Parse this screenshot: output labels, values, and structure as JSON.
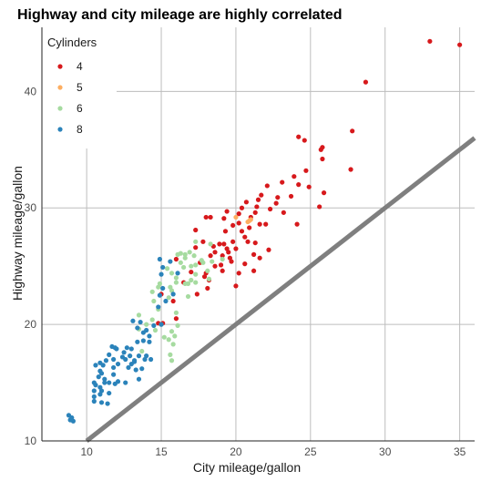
{
  "chart_data": {
    "type": "scatter",
    "title": "Highway and city mileage are highly correlated",
    "xlabel": "City mileage/gallon",
    "ylabel": "Highway mileage/gallon",
    "xlim": [
      7,
      36
    ],
    "ylim": [
      10,
      45.5
    ],
    "xticks": [
      10,
      15,
      20,
      25,
      30,
      35
    ],
    "yticks": [
      10,
      20,
      30,
      40
    ],
    "grid": true,
    "legend": {
      "title": "Cylinders",
      "placement": "top-left"
    },
    "reference_line": {
      "slope": 1,
      "intercept": 0,
      "color": "#7f7f7f"
    },
    "series": [
      {
        "name": "4",
        "color": "#d7191c",
        "points": [
          [
            33.0,
            44.3
          ],
          [
            35.0,
            44.0
          ],
          [
            28.7,
            40.8
          ],
          [
            27.8,
            36.6
          ],
          [
            24.2,
            36.1
          ],
          [
            24.6,
            35.8
          ],
          [
            25.8,
            35.2
          ],
          [
            25.7,
            35.0
          ],
          [
            25.8,
            34.2
          ],
          [
            27.7,
            33.3
          ],
          [
            24.7,
            33.2
          ],
          [
            23.9,
            32.7
          ],
          [
            23.1,
            32.2
          ],
          [
            24.2,
            32.0
          ],
          [
            22.1,
            31.9
          ],
          [
            24.9,
            31.8
          ],
          [
            25.9,
            31.3
          ],
          [
            21.7,
            31.1
          ],
          [
            23.7,
            31.0
          ],
          [
            22.8,
            30.9
          ],
          [
            21.5,
            30.7
          ],
          [
            20.7,
            30.5
          ],
          [
            22.7,
            30.4
          ],
          [
            21.4,
            30.1
          ],
          [
            20.4,
            30.0
          ],
          [
            22.3,
            29.9
          ],
          [
            25.6,
            30.1
          ],
          [
            19.4,
            29.7
          ],
          [
            23.2,
            29.6
          ],
          [
            20.2,
            29.5
          ],
          [
            21.0,
            29.2
          ],
          [
            21.3,
            29.6
          ],
          [
            19.2,
            29.1
          ],
          [
            18.0,
            29.2
          ],
          [
            18.3,
            29.2
          ],
          [
            20.2,
            28.7
          ],
          [
            22.0,
            28.6
          ],
          [
            19.8,
            28.5
          ],
          [
            21.6,
            28.6
          ],
          [
            20.9,
            28.3
          ],
          [
            24.1,
            28.6
          ],
          [
            17.3,
            28.1
          ],
          [
            20.4,
            28.0
          ],
          [
            19.3,
            28.0
          ],
          [
            20.6,
            27.5
          ],
          [
            19.8,
            27.1
          ],
          [
            17.8,
            27.1
          ],
          [
            20.8,
            27.1
          ],
          [
            21.3,
            27.0
          ],
          [
            19.2,
            26.9
          ],
          [
            18.9,
            26.9
          ],
          [
            18.5,
            26.7
          ],
          [
            17.3,
            26.6
          ],
          [
            19.4,
            26.5
          ],
          [
            20.0,
            26.5
          ],
          [
            18.6,
            26.2
          ],
          [
            22.2,
            26.4
          ],
          [
            19.5,
            26.2
          ],
          [
            21.2,
            26.0
          ],
          [
            19.1,
            25.9
          ],
          [
            18.3,
            25.9
          ],
          [
            19.6,
            25.7
          ],
          [
            19.7,
            25.4
          ],
          [
            17.6,
            25.3
          ],
          [
            19.0,
            25.1
          ],
          [
            18.6,
            25.0
          ],
          [
            21.6,
            25.7
          ],
          [
            20.6,
            25.2
          ],
          [
            21.2,
            24.6
          ],
          [
            20.2,
            24.4
          ],
          [
            18.0,
            24.4
          ],
          [
            19.1,
            24.6
          ],
          [
            17.0,
            24.5
          ],
          [
            16.0,
            25.6
          ],
          [
            17.9,
            24.1
          ],
          [
            18.2,
            23.8
          ],
          [
            20.0,
            23.3
          ],
          [
            16.5,
            23.6
          ],
          [
            18.1,
            23.1
          ],
          [
            17.4,
            22.6
          ],
          [
            15.0,
            22.6
          ],
          [
            15.8,
            22.0
          ],
          [
            16.0,
            20.5
          ],
          [
            15.1,
            20.1
          ],
          [
            14.8,
            20.1
          ]
        ]
      },
      {
        "name": "5",
        "color": "#fdae61",
        "points": [
          [
            20.0,
            29.2
          ],
          [
            21.0,
            29.0
          ],
          [
            20.9,
            28.9
          ],
          [
            20.8,
            28.8
          ]
        ]
      },
      {
        "name": "6",
        "color": "#a6dba0",
        "points": [
          [
            17.3,
            27.1
          ],
          [
            18.3,
            26.9
          ],
          [
            16.9,
            26.2
          ],
          [
            16.3,
            26.1
          ],
          [
            16.1,
            26.0
          ],
          [
            16.6,
            26.0
          ],
          [
            17.2,
            25.9
          ],
          [
            16.6,
            25.7
          ],
          [
            17.7,
            25.5
          ],
          [
            19.1,
            25.6
          ],
          [
            18.4,
            25.4
          ],
          [
            17.8,
            25.3
          ],
          [
            16.3,
            25.3
          ],
          [
            17.3,
            25.1
          ],
          [
            17.0,
            25.0
          ],
          [
            16.5,
            24.9
          ],
          [
            15.4,
            24.8
          ],
          [
            18.1,
            24.6
          ],
          [
            17.3,
            24.3
          ],
          [
            15.7,
            24.4
          ],
          [
            16.0,
            24.0
          ],
          [
            18.2,
            23.9
          ],
          [
            16.0,
            23.6
          ],
          [
            14.9,
            23.5
          ],
          [
            15.6,
            23.2
          ],
          [
            17.3,
            23.6
          ],
          [
            17.0,
            23.8
          ],
          [
            16.8,
            23.5
          ],
          [
            14.4,
            22.8
          ],
          [
            15.7,
            22.9
          ],
          [
            14.8,
            23.2
          ],
          [
            16.6,
            23.5
          ],
          [
            14.5,
            22.0
          ],
          [
            15.5,
            22.3
          ],
          [
            14.8,
            21.3
          ],
          [
            16.0,
            21.0
          ],
          [
            13.5,
            20.8
          ],
          [
            14.4,
            20.4
          ],
          [
            15.0,
            20.0
          ],
          [
            16.1,
            19.9
          ],
          [
            13.5,
            19.6
          ],
          [
            15.7,
            19.4
          ],
          [
            15.9,
            19.0
          ],
          [
            15.5,
            18.7
          ],
          [
            15.8,
            18.3
          ],
          [
            13.7,
            17.7
          ],
          [
            15.6,
            17.4
          ],
          [
            15.7,
            16.9
          ],
          [
            15.2,
            18.9
          ],
          [
            14.6,
            19.5
          ],
          [
            14.0,
            20.0
          ],
          [
            16.8,
            22.4
          ]
        ]
      },
      {
        "name": "8",
        "color": "#2b83ba",
        "points": [
          [
            8.8,
            12.2
          ],
          [
            9.0,
            12.0
          ],
          [
            8.9,
            11.8
          ],
          [
            9.1,
            11.7
          ],
          [
            10.5,
            15.0
          ],
          [
            10.6,
            14.8
          ],
          [
            10.5,
            14.3
          ],
          [
            10.8,
            15.5
          ],
          [
            10.9,
            14.6
          ],
          [
            11.0,
            14.3
          ],
          [
            11.2,
            15.0
          ],
          [
            11.5,
            15.0
          ],
          [
            11.2,
            15.3
          ],
          [
            10.5,
            13.8
          ],
          [
            10.5,
            13.4
          ],
          [
            11.0,
            13.3
          ],
          [
            11.4,
            13.2
          ],
          [
            10.9,
            14.0
          ],
          [
            11.5,
            14.1
          ],
          [
            11.9,
            14.9
          ],
          [
            12.1,
            15.1
          ],
          [
            11.8,
            15.7
          ],
          [
            11.0,
            15.8
          ],
          [
            10.9,
            16.0
          ],
          [
            10.6,
            16.5
          ],
          [
            10.9,
            16.7
          ],
          [
            11.1,
            16.5
          ],
          [
            11.3,
            16.9
          ],
          [
            11.8,
            16.3
          ],
          [
            11.8,
            17.0
          ],
          [
            12.1,
            16.6
          ],
          [
            12.0,
            17.9
          ],
          [
            11.7,
            18.1
          ],
          [
            11.9,
            18.0
          ],
          [
            11.5,
            17.4
          ],
          [
            12.4,
            17.2
          ],
          [
            12.6,
            17.0
          ],
          [
            12.5,
            17.6
          ],
          [
            12.7,
            18.0
          ],
          [
            13.0,
            17.9
          ],
          [
            12.9,
            17.3
          ],
          [
            13.2,
            16.8
          ],
          [
            13.5,
            17.3
          ],
          [
            13.9,
            17.0
          ],
          [
            13.0,
            16.6
          ],
          [
            12.8,
            16.3
          ],
          [
            13.3,
            16.1
          ],
          [
            13.7,
            16.2
          ],
          [
            13.5,
            15.3
          ],
          [
            12.6,
            15.0
          ],
          [
            13.4,
            18.5
          ],
          [
            13.8,
            18.6
          ],
          [
            14.2,
            18.5
          ],
          [
            14.2,
            19.0
          ],
          [
            13.8,
            19.3
          ],
          [
            13.4,
            19.7
          ],
          [
            13.6,
            20.2
          ],
          [
            13.1,
            20.3
          ],
          [
            14.5,
            19.9
          ],
          [
            15.0,
            20.0
          ],
          [
            14.0,
            17.3
          ],
          [
            14.3,
            17.0
          ],
          [
            14.8,
            21.5
          ],
          [
            14.9,
            22.5
          ],
          [
            15.3,
            22.0
          ],
          [
            15.1,
            23.1
          ],
          [
            15.8,
            22.6
          ],
          [
            15.0,
            24.3
          ],
          [
            15.1,
            24.9
          ],
          [
            15.6,
            25.4
          ],
          [
            16.1,
            24.4
          ],
          [
            14.9,
            25.6
          ],
          [
            14.0,
            19.5
          ],
          [
            13.2,
            16.9
          ]
        ]
      }
    ]
  }
}
